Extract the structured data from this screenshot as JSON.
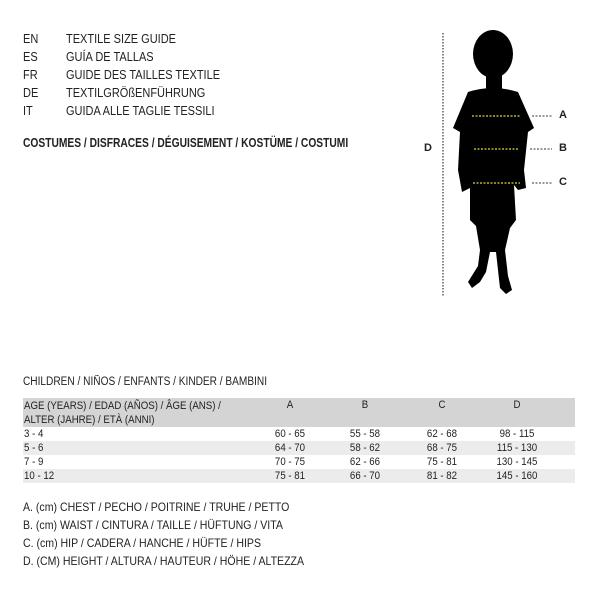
{
  "guide_titles": [
    {
      "code": "EN",
      "text": "TEXTILE SIZE GUIDE"
    },
    {
      "code": "ES",
      "text": "GUÍA DE TALLAS"
    },
    {
      "code": "FR",
      "text": "GUIDE DES TAILLES TEXTILE"
    },
    {
      "code": "DE",
      "text": "TEXTILGRÖßENFÜHRUNG"
    },
    {
      "code": "IT",
      "text": "GUIDA ALLE TAGLIE TESSILI"
    }
  ],
  "category": "COSTUMES / DISFRACES / DÉGUISEMENT / KOSTÜME / COSTUMI",
  "figure": {
    "labels": {
      "a": "A",
      "b": "B",
      "c": "C",
      "d": "D"
    },
    "measure_line_color": "#e8d23a"
  },
  "table": {
    "caption": "CHILDREN / NIÑOS / ENFANTS / KINDER / BAMBINI",
    "header": {
      "age_line1": "AGE (YEARS) / EDAD (AÑOS) / ÂGE (ANS) /",
      "age_line2": "ALTER (JAHRE) / ETÀ (ANNI)",
      "a": "A",
      "b": "B",
      "c": "C",
      "d": "D"
    },
    "rows": [
      {
        "age": "3 - 4",
        "a": "60 - 65",
        "b": "55 - 58",
        "c": "62 - 68",
        "d": "98 - 115"
      },
      {
        "age": "5 - 6",
        "a": "64 - 70",
        "b": "58 - 62",
        "c": "68 - 75",
        "d": "115 - 130"
      },
      {
        "age": "7 - 9",
        "a": "70 - 75",
        "b": "62 - 66",
        "c": "75 - 81",
        "d": "130 - 145"
      },
      {
        "age": "10 - 12",
        "a": "75 - 81",
        "b": "66 - 70",
        "c": "81 - 82",
        "d": "145 - 160"
      }
    ]
  },
  "legend": [
    "A. (cm) CHEST / PECHO / POITRINE / TRUHE / PETTO",
    "B. (cm) WAIST / CINTURA / TAILLE / HÜFTUNG / VITA",
    "C. (cm) HIP / CADERA / HANCHE / HÜFTE / HIPS",
    "D. (CM) HEIGHT / ALTURA / HAUTEUR / HÖHE / ALTEZZA"
  ]
}
